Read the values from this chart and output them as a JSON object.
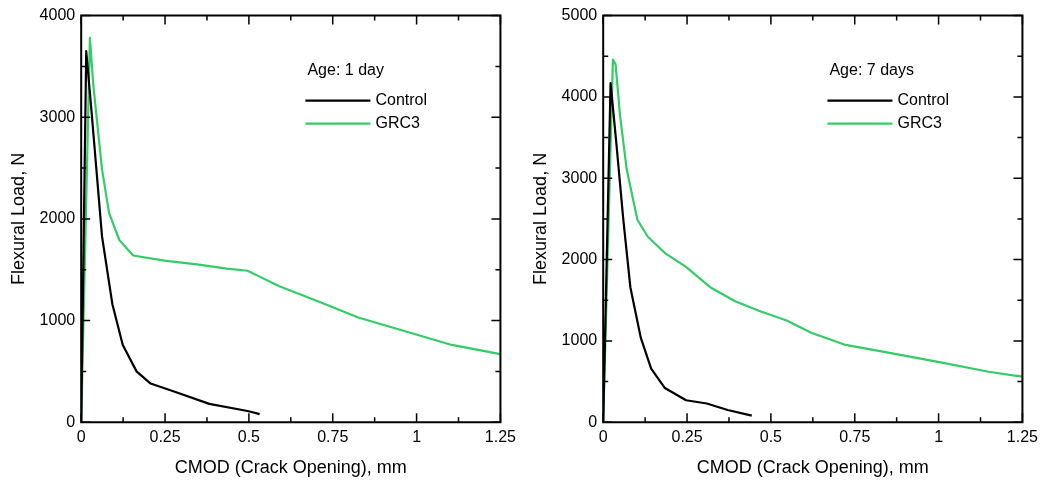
{
  "chart_data": [
    {
      "type": "line",
      "xlabel": "CMOD (Crack Opening), mm",
      "ylabel": "Flexural Load, N",
      "legend_title": "Age: 1 day",
      "legend": "top right",
      "grid": false,
      "xlim": [
        0,
        1.25
      ],
      "xticks": [
        0,
        {
          "value": 0.125,
          "label": null
        },
        0.25,
        {
          "value": 0.375,
          "label": null
        },
        0.5,
        {
          "value": 0.625,
          "label": null
        },
        0.75,
        {
          "value": 0.875,
          "label": null
        },
        1,
        {
          "value": 1.125,
          "label": null
        },
        1.25
      ],
      "ylim": [
        0,
        4000
      ],
      "yticks": [
        0,
        {
          "value": 500,
          "label": null
        },
        1000,
        {
          "value": 1500,
          "label": null
        },
        2000,
        {
          "value": 2500,
          "label": null
        },
        3000,
        {
          "value": 3500,
          "label": null
        },
        4000
      ],
      "series": [
        {
          "name": "Control",
          "color": "#000000",
          "x": [
            0,
            0.015,
            0.031,
            0.062,
            0.093,
            0.124,
            0.165,
            0.207,
            0.279,
            0.382,
            0.496,
            0.532
          ],
          "values": [
            0,
            3650,
            3050,
            1830,
            1160,
            760,
            500,
            380,
            300,
            180,
            110,
            80
          ]
        },
        {
          "name": "GRC3",
          "color": "#33cc66",
          "x": [
            0,
            0.026,
            0.036,
            0.062,
            0.083,
            0.114,
            0.155,
            0.248,
            0.351,
            0.434,
            0.496,
            0.589,
            0.713,
            0.826,
            0.961,
            1.105,
            1.25
          ],
          "values": [
            0,
            3780,
            3320,
            2490,
            2060,
            1790,
            1640,
            1590,
            1550,
            1510,
            1490,
            1340,
            1180,
            1030,
            900,
            760,
            670
          ]
        }
      ]
    },
    {
      "type": "line",
      "xlabel": "CMOD (Crack Opening), mm",
      "ylabel": "Flexural Load, N",
      "legend_title": "Age: 7 days",
      "legend": "top right",
      "grid": false,
      "xlim": [
        0,
        1.25
      ],
      "xticks": [
        0,
        {
          "value": 0.125,
          "label": null
        },
        0.25,
        {
          "value": 0.375,
          "label": null
        },
        0.5,
        {
          "value": 0.625,
          "label": null
        },
        0.75,
        {
          "value": 0.875,
          "label": null
        },
        1,
        {
          "value": 1.125,
          "label": null
        },
        1.25
      ],
      "ylim": [
        0,
        5000
      ],
      "yticks": [
        0,
        {
          "value": 500,
          "label": null
        },
        1000,
        {
          "value": 1500,
          "label": null
        },
        2000,
        {
          "value": 2500,
          "label": null
        },
        3000,
        {
          "value": 3500,
          "label": null
        },
        4000,
        {
          "value": 4500,
          "label": null
        },
        5000
      ],
      "series": [
        {
          "name": "Control",
          "color": "#000000",
          "x": [
            0,
            0.022,
            0.039,
            0.06,
            0.081,
            0.112,
            0.143,
            0.184,
            0.247,
            0.309,
            0.371,
            0.443
          ],
          "values": [
            0,
            4170,
            3440,
            2490,
            1660,
            1040,
            660,
            420,
            270,
            230,
            150,
            80
          ]
        },
        {
          "name": "GRC3",
          "color": "#33cc66",
          "x": [
            0,
            0.029,
            0.037,
            0.05,
            0.07,
            0.102,
            0.133,
            0.184,
            0.247,
            0.319,
            0.392,
            0.464,
            0.547,
            0.62,
            0.723,
            0.858,
            1.014,
            1.149,
            1.25
          ],
          "values": [
            0,
            4460,
            4400,
            3780,
            3110,
            2490,
            2280,
            2080,
            1910,
            1660,
            1490,
            1370,
            1250,
            1100,
            950,
            850,
            730,
            620,
            560
          ]
        }
      ]
    }
  ]
}
